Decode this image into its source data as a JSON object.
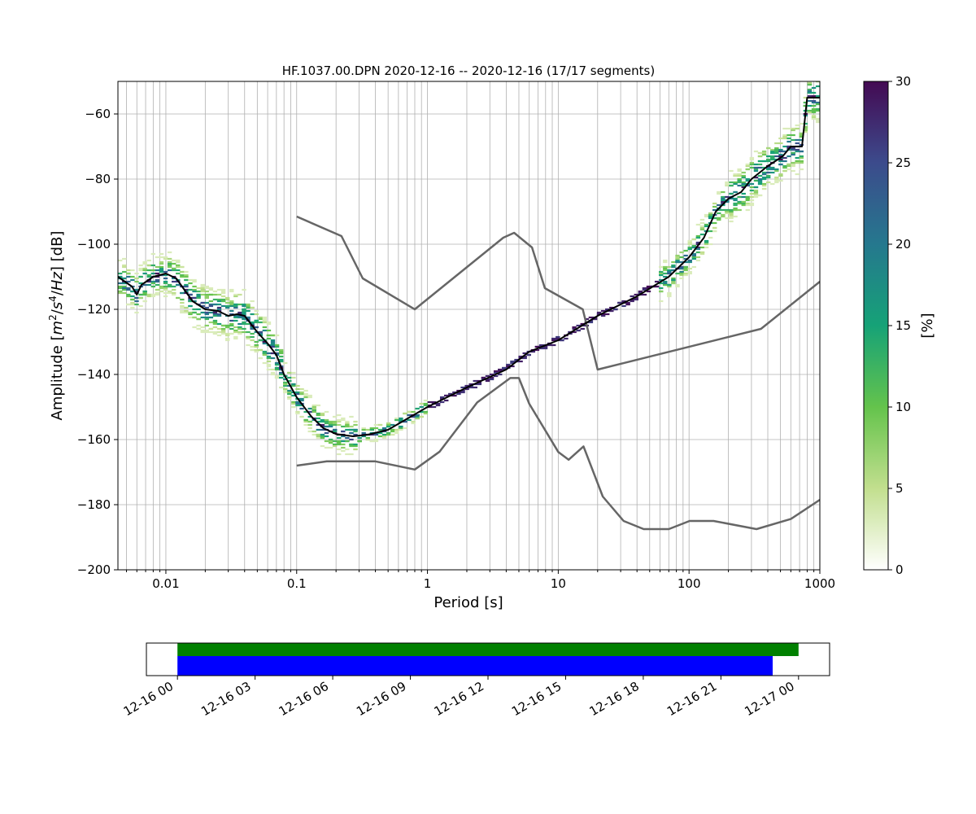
{
  "chart_data": [
    {
      "type": "heatmap",
      "title": "HF.1037.00.DPN   2020-12-16 -- 2020-12-16  (17/17 segments)",
      "xlabel": "Period [s]",
      "ylabel": "Amplitude [m²/s⁴/Hz] [dB]",
      "x_scale": "log",
      "xlim": [
        0.0043,
        1000
      ],
      "ylim": [
        -200,
        -50
      ],
      "grid": true,
      "x_ticks": [
        {
          "value": 0.01,
          "label": "0.01"
        },
        {
          "value": 0.1,
          "label": "0.1"
        },
        {
          "value": 1,
          "label": "1"
        },
        {
          "value": 10,
          "label": "10"
        },
        {
          "value": 100,
          "label": "100"
        },
        {
          "value": 1000,
          "label": "1000"
        }
      ],
      "y_ticks": [
        {
          "value": -200,
          "label": "−200"
        },
        {
          "value": -180,
          "label": "−180"
        },
        {
          "value": -160,
          "label": "−160"
        },
        {
          "value": -140,
          "label": "−140"
        },
        {
          "value": -120,
          "label": "−120"
        },
        {
          "value": -100,
          "label": "−100"
        },
        {
          "value": -80,
          "label": "−80"
        },
        {
          "value": -60,
          "label": "−60"
        }
      ],
      "colorbar": {
        "label": "[%]",
        "colormap": "viridis_r-like",
        "stops": [
          {
            "value": 0,
            "color": "#ffffff"
          },
          {
            "value": 5,
            "color": "#c2df8e"
          },
          {
            "value": 10,
            "color": "#64c34c"
          },
          {
            "value": 15,
            "color": "#16a277"
          },
          {
            "value": 20,
            "color": "#25788e"
          },
          {
            "value": 25,
            "color": "#3c4b8c"
          },
          {
            "value": 30,
            "color": "#440a53"
          }
        ],
        "range": [
          0,
          30
        ],
        "ticks": [
          {
            "value": 0,
            "label": "0"
          },
          {
            "value": 5,
            "label": "5"
          },
          {
            "value": 10,
            "label": "10"
          },
          {
            "value": 15,
            "label": "15"
          },
          {
            "value": 20,
            "label": "20"
          },
          {
            "value": 25,
            "label": "25"
          },
          {
            "value": 30,
            "label": "30"
          }
        ]
      },
      "series": [
        {
          "kind": "noise_model_upper",
          "color": "#666666",
          "points": [
            [
              0.1,
              -91.5
            ],
            [
              0.22,
              -97.5
            ],
            [
              0.32,
              -110.5
            ],
            [
              0.8,
              -120
            ],
            [
              3.8,
              -98
            ],
            [
              4.6,
              -96.5
            ],
            [
              6.3,
              -101
            ],
            [
              7.9,
              -113.5
            ],
            [
              15.4,
              -120
            ],
            [
              20,
              -138.5
            ],
            [
              354.8,
              -126
            ],
            [
              1000,
              -111.5
            ]
          ]
        },
        {
          "kind": "noise_model_lower",
          "color": "#666666",
          "points": [
            [
              0.1,
              -168
            ],
            [
              0.17,
              -166.7
            ],
            [
              0.4,
              -166.7
            ],
            [
              0.8,
              -169.2
            ],
            [
              1.24,
              -163.7
            ],
            [
              2.4,
              -148.6
            ],
            [
              4.3,
              -141.1
            ],
            [
              5,
              -141.1
            ],
            [
              6,
              -149
            ],
            [
              10,
              -163.8
            ],
            [
              12,
              -166.2
            ],
            [
              15.6,
              -162.1
            ],
            [
              21.9,
              -177.5
            ],
            [
              31.6,
              -185
            ],
            [
              45,
              -187.5
            ],
            [
              70,
              -187.5
            ],
            [
              101,
              -185
            ],
            [
              154,
              -185
            ],
            [
              328,
              -187.5
            ],
            [
              600,
              -184.4
            ],
            [
              1000,
              -178.5
            ]
          ]
        },
        {
          "kind": "mode_line",
          "color": "#000000",
          "points": [
            [
              0.0043,
              -110
            ],
            [
              0.0055,
              -113
            ],
            [
              0.006,
              -115.5
            ],
            [
              0.0065,
              -112.5
            ],
            [
              0.008,
              -110
            ],
            [
              0.01,
              -109
            ],
            [
              0.012,
              -110.5
            ],
            [
              0.016,
              -117.5
            ],
            [
              0.02,
              -120
            ],
            [
              0.025,
              -120.5
            ],
            [
              0.03,
              -122
            ],
            [
              0.035,
              -121.5
            ],
            [
              0.04,
              -122
            ],
            [
              0.05,
              -127
            ],
            [
              0.06,
              -130.5
            ],
            [
              0.07,
              -134
            ],
            [
              0.08,
              -140
            ],
            [
              0.1,
              -147
            ],
            [
              0.13,
              -153
            ],
            [
              0.16,
              -156.5
            ],
            [
              0.2,
              -158.3
            ],
            [
              0.27,
              -159
            ],
            [
              0.35,
              -158.5
            ],
            [
              0.5,
              -157
            ],
            [
              1,
              -150
            ],
            [
              2,
              -144
            ],
            [
              4,
              -138.5
            ],
            [
              6,
              -133
            ],
            [
              10,
              -129.5
            ],
            [
              20,
              -122
            ],
            [
              40,
              -116
            ],
            [
              70,
              -110
            ],
            [
              100,
              -104
            ],
            [
              130,
              -98
            ],
            [
              160,
              -90
            ],
            [
              200,
              -86
            ],
            [
              250,
              -84
            ],
            [
              300,
              -80
            ],
            [
              400,
              -76
            ],
            [
              520,
              -73
            ],
            [
              600,
              -70
            ],
            [
              730,
              -70
            ],
            [
              800,
              -55
            ],
            [
              1000,
              -55
            ]
          ]
        }
      ]
    },
    {
      "type": "timeline",
      "x_ticks": [
        "12-16 00",
        "12-16 03",
        "12-16 06",
        "12-16 09",
        "12-16 12",
        "12-16 15",
        "12-16 18",
        "12-16 21",
        "12-17 00"
      ],
      "xlim_hours": [
        -1.2,
        25.2
      ],
      "bars": [
        {
          "color": "#008000",
          "start_hours": 0,
          "end_hours": 24
        },
        {
          "color": "#0000ff",
          "start_hours": 0,
          "end_hours": 23
        }
      ]
    }
  ]
}
